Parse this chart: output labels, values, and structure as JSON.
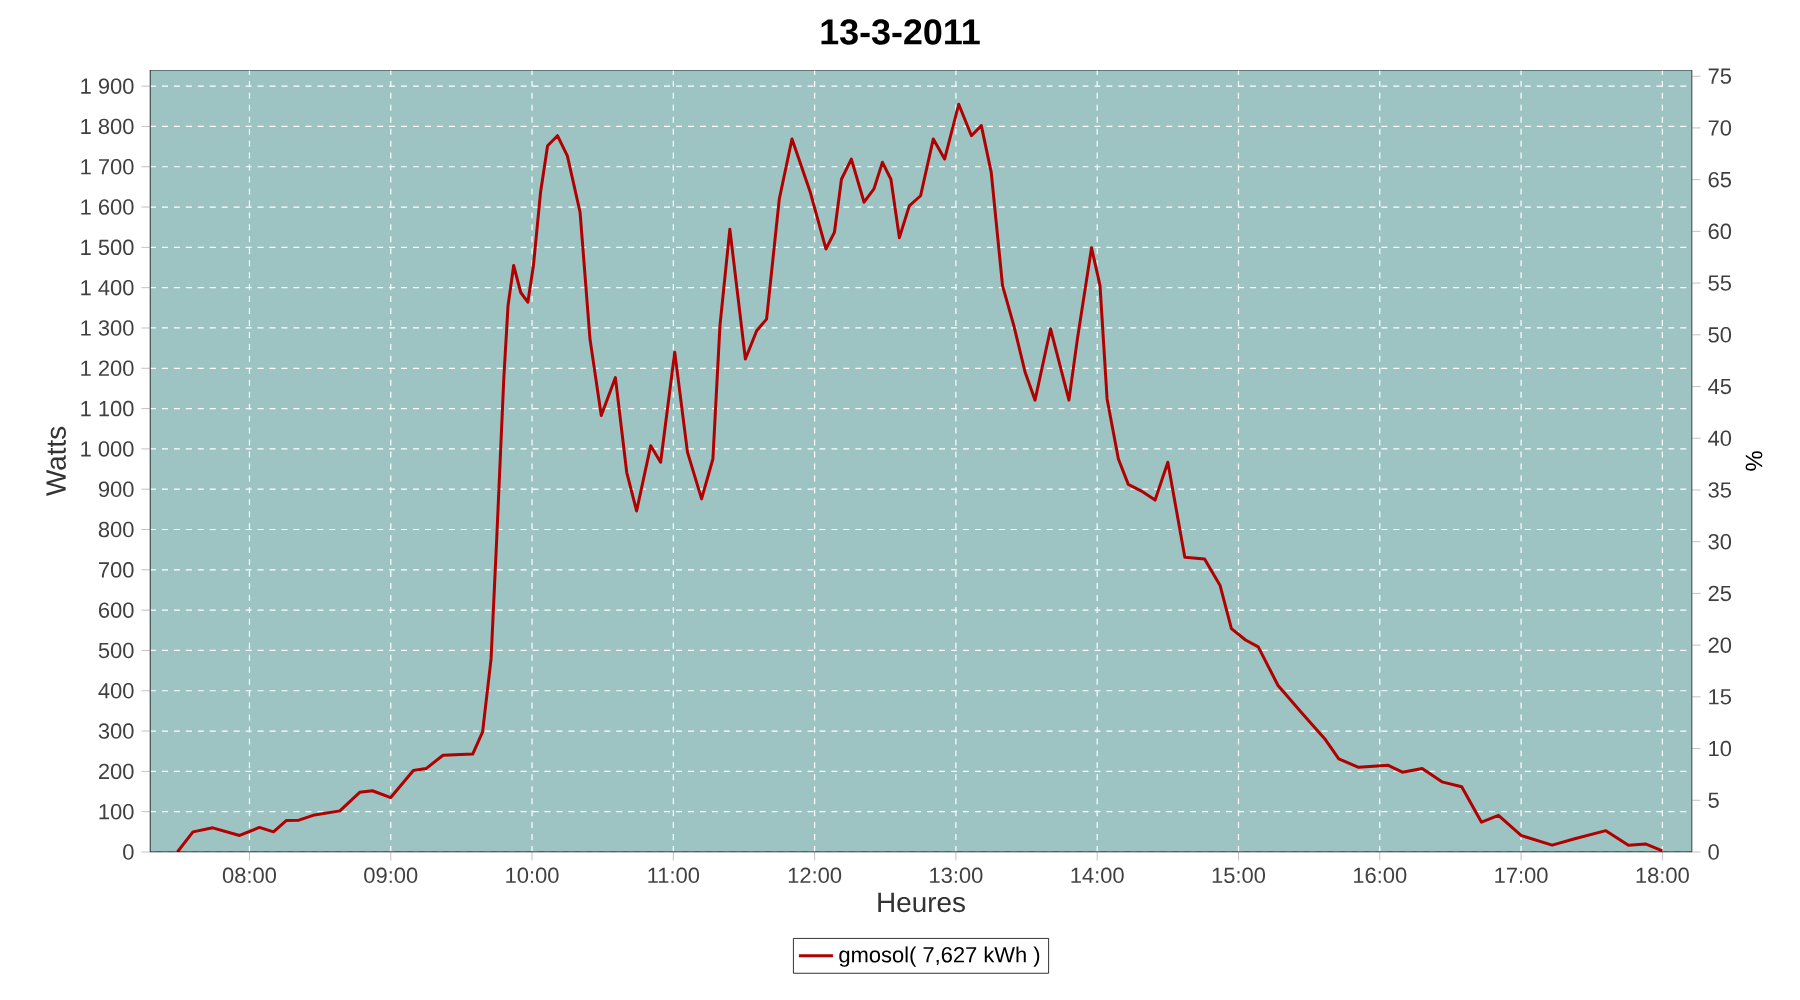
{
  "chart_data": {
    "type": "line",
    "title": "13-3-2011",
    "xlabel": "Heures",
    "ylabel": "Watts",
    "y2label": "%",
    "x": [
      7.49,
      7.6,
      7.74,
      7.93,
      8.07,
      8.17,
      8.26,
      8.35,
      8.45,
      8.64,
      8.78,
      8.87,
      9.0,
      9.16,
      9.25,
      9.37,
      9.58,
      9.65,
      9.71,
      9.75,
      9.8,
      9.83,
      9.87,
      9.92,
      9.97,
      10.01,
      10.06,
      10.11,
      10.18,
      10.25,
      10.34,
      10.41,
      10.49,
      10.59,
      10.67,
      10.74,
      10.84,
      10.91,
      11.01,
      11.1,
      11.2,
      11.28,
      11.33,
      11.4,
      11.51,
      11.59,
      11.66,
      11.75,
      11.84,
      11.97,
      12.08,
      12.14,
      12.19,
      12.26,
      12.35,
      12.42,
      12.48,
      12.54,
      12.6,
      12.67,
      12.75,
      12.84,
      12.92,
      13.02,
      13.11,
      13.18,
      13.25,
      13.33,
      13.41,
      13.49,
      13.56,
      13.67,
      13.8,
      13.86,
      13.96,
      14.02,
      14.07,
      14.15,
      14.22,
      14.31,
      14.41,
      14.5,
      14.62,
      14.76,
      14.87,
      14.95,
      15.05,
      15.14,
      15.28,
      15.45,
      15.61,
      15.71,
      15.85,
      16.06,
      16.16,
      16.3,
      16.44,
      16.58,
      16.72,
      16.84,
      17.0,
      17.22,
      17.38,
      17.6,
      17.76,
      17.88,
      18.0
    ],
    "series": [
      {
        "name": "gmosol( 7,627 kWh )",
        "color": "#b00000",
        "values": [
          0,
          50,
          60,
          41,
          61,
          50,
          78,
          79,
          91,
          102,
          148,
          152,
          135,
          202,
          207,
          240,
          243,
          298,
          479,
          777,
          1174,
          1355,
          1455,
          1388,
          1364,
          1455,
          1636,
          1752,
          1777,
          1727,
          1587,
          1273,
          1083,
          1177,
          942,
          846,
          1008,
          967,
          1240,
          992,
          876,
          975,
          1306,
          1545,
          1223,
          1293,
          1322,
          1620,
          1769,
          1636,
          1496,
          1537,
          1669,
          1719,
          1612,
          1645,
          1711,
          1669,
          1524,
          1603,
          1628,
          1769,
          1719,
          1855,
          1777,
          1802,
          1686,
          1405,
          1306,
          1190,
          1121,
          1298,
          1121,
          1273,
          1499,
          1405,
          1124,
          975,
          912,
          896,
          873,
          967,
          731,
          727,
          661,
          554,
          526,
          509,
          413,
          344,
          281,
          231,
          210,
          215,
          198,
          207,
          174,
          162,
          74,
          91,
          41,
          17,
          33,
          53,
          17,
          20,
          3
        ]
      }
    ],
    "xlim": [
      7.296,
      18.21
    ],
    "xticks": [
      {
        "value": 8,
        "label": "08:00"
      },
      {
        "value": 9,
        "label": "09:00"
      },
      {
        "value": 10,
        "label": "10:00"
      },
      {
        "value": 11,
        "label": "11:00"
      },
      {
        "value": 12,
        "label": "12:00"
      },
      {
        "value": 13,
        "label": "13:00"
      },
      {
        "value": 14,
        "label": "14:00"
      },
      {
        "value": 15,
        "label": "15:00"
      },
      {
        "value": 16,
        "label": "16:00"
      },
      {
        "value": 17,
        "label": "17:00"
      },
      {
        "value": 18,
        "label": "18:00"
      }
    ],
    "ylim": [
      0,
      1940
    ],
    "yticks": [
      0,
      100,
      200,
      300,
      400,
      500,
      600,
      700,
      800,
      900,
      {
        "value": 1000,
        "label": "1 000"
      },
      {
        "value": 1100,
        "label": "1 100"
      },
      {
        "value": 1200,
        "label": "1 200"
      },
      {
        "value": 1300,
        "label": "1 300"
      },
      {
        "value": 1400,
        "label": "1 400"
      },
      {
        "value": 1500,
        "label": "1 500"
      },
      {
        "value": 1600,
        "label": "1 600"
      },
      {
        "value": 1700,
        "label": "1 700"
      },
      {
        "value": 1800,
        "label": "1 800"
      },
      {
        "value": 1900,
        "label": "1 900"
      }
    ],
    "y2lim": [
      0,
      75.6
    ],
    "y2ticks": [
      0,
      5,
      10,
      15,
      20,
      25,
      30,
      35,
      40,
      45,
      50,
      55,
      60,
      65,
      70,
      75
    ],
    "grid": true,
    "legend": "bottom"
  }
}
